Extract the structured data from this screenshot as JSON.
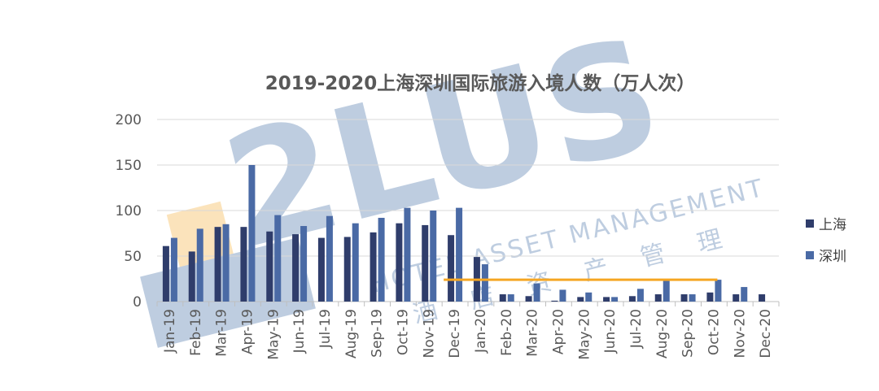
{
  "watermark": {
    "logo_text": "2LUS",
    "tagline": "HOTEL ASSET MANAGEMENT",
    "cn_text": "酒店资产管理"
  },
  "colors": {
    "shanghai": "#2f3d6b",
    "shenzhen": "#4a6aa5",
    "highlight_line": "#f5a623",
    "grid": "#d9d9d9",
    "axis": "#bfbfbf"
  },
  "chart_data": {
    "type": "bar",
    "title": "2019-2020上海深圳国际旅游入境人数（万人次）",
    "categories": [
      "Jan-19",
      "Feb-19",
      "Mar-19",
      "Apr-19",
      "May-19",
      "Jun-19",
      "Jul-19",
      "Aug-19",
      "Sep-19",
      "Oct-19",
      "Nov-19",
      "Dec-19",
      "Jan-20",
      "Feb-20",
      "Mar-20",
      "Apr-20",
      "May-20",
      "Jun-20",
      "Jul-20",
      "Aug-20",
      "Sep-20",
      "Oct-20",
      "Nov-20",
      "Dec-20"
    ],
    "series": [
      {
        "name": "上海",
        "values": [
          61,
          55,
          82,
          82,
          77,
          74,
          70,
          71,
          76,
          86,
          84,
          73,
          49,
          8,
          6,
          1,
          5,
          5,
          6,
          8,
          8,
          10,
          8,
          8
        ]
      },
      {
        "name": "深圳",
        "values": [
          70,
          80,
          85,
          150,
          95,
          83,
          94,
          86,
          92,
          103,
          100,
          103,
          41,
          8,
          20,
          13,
          10,
          5,
          14,
          23,
          8,
          24,
          16,
          null
        ]
      }
    ],
    "ylim": [
      0,
      200
    ],
    "yticks": [
      0,
      50,
      100,
      150,
      200
    ],
    "grid": true,
    "legend_position": "right",
    "reference_line": {
      "from": "Dec-19",
      "to": "Oct-20",
      "value": 24
    }
  }
}
